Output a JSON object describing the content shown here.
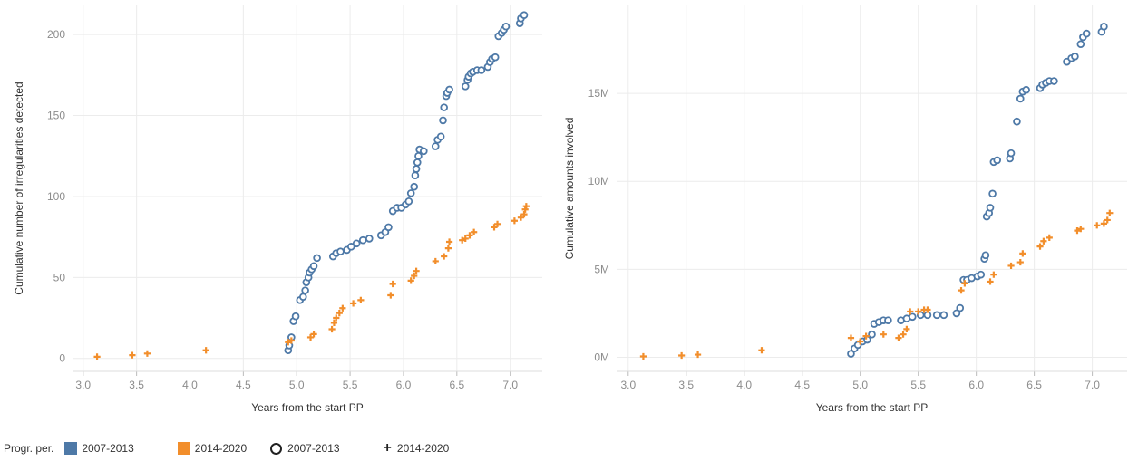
{
  "colors": {
    "series_2007": "#4e79a7",
    "series_2014": "#f28e2b",
    "grid": "#ececec"
  },
  "legend": {
    "title": "Progr. per.",
    "items": [
      {
        "label": "2007-2013",
        "kind": "color",
        "color": "#4e79a7"
      },
      {
        "label": "2014-2020",
        "kind": "color",
        "color": "#f28e2b"
      },
      {
        "label": "2007-2013",
        "kind": "shape",
        "shape": "circle"
      },
      {
        "label": "2014-2020",
        "kind": "shape",
        "shape": "plus"
      }
    ]
  },
  "chart_data": [
    {
      "type": "scatter",
      "xlabel": "Years from the start PP",
      "ylabel": "Cumulative number of irregularities detected",
      "xlim": [
        2.9,
        7.3
      ],
      "ylim": [
        -8,
        218
      ],
      "xticks": [
        3.0,
        3.5,
        4.0,
        4.5,
        5.0,
        5.5,
        6.0,
        6.5,
        7.0
      ],
      "xtick_labels": [
        "3.0",
        "3.5",
        "4.0",
        "4.5",
        "5.0",
        "5.5",
        "6.0",
        "6.5",
        "7.0"
      ],
      "yticks": [
        0,
        50,
        100,
        150,
        200
      ],
      "ytick_labels": [
        "0",
        "50",
        "100",
        "150",
        "200"
      ],
      "grid": true,
      "series": [
        {
          "name": "2007-2013",
          "marker": "circle",
          "color": "#4e79a7",
          "points": [
            [
              4.92,
              5
            ],
            [
              4.93,
              8
            ],
            [
              4.95,
              13
            ],
            [
              4.97,
              23
            ],
            [
              4.99,
              26
            ],
            [
              5.03,
              36
            ],
            [
              5.06,
              38
            ],
            [
              5.08,
              42
            ],
            [
              5.09,
              47
            ],
            [
              5.11,
              50
            ],
            [
              5.12,
              53
            ],
            [
              5.14,
              55
            ],
            [
              5.16,
              57
            ],
            [
              5.19,
              62
            ],
            [
              5.34,
              63
            ],
            [
              5.37,
              65
            ],
            [
              5.41,
              66
            ],
            [
              5.47,
              67
            ],
            [
              5.51,
              69
            ],
            [
              5.56,
              71
            ],
            [
              5.62,
              73
            ],
            [
              5.68,
              74
            ],
            [
              5.79,
              76
            ],
            [
              5.83,
              78
            ],
            [
              5.86,
              81
            ],
            [
              5.9,
              91
            ],
            [
              5.94,
              93
            ],
            [
              5.98,
              93
            ],
            [
              6.02,
              95
            ],
            [
              6.05,
              97
            ],
            [
              6.07,
              102
            ],
            [
              6.1,
              106
            ],
            [
              6.11,
              113
            ],
            [
              6.12,
              117
            ],
            [
              6.13,
              121
            ],
            [
              6.14,
              125
            ],
            [
              6.15,
              129
            ],
            [
              6.19,
              128
            ],
            [
              6.3,
              131
            ],
            [
              6.32,
              135
            ],
            [
              6.35,
              137
            ],
            [
              6.37,
              147
            ],
            [
              6.38,
              155
            ],
            [
              6.4,
              162
            ],
            [
              6.41,
              164
            ],
            [
              6.43,
              166
            ],
            [
              6.58,
              168
            ],
            [
              6.6,
              172
            ],
            [
              6.61,
              174
            ],
            [
              6.63,
              176
            ],
            [
              6.65,
              177
            ],
            [
              6.69,
              178
            ],
            [
              6.73,
              178
            ],
            [
              6.79,
              180
            ],
            [
              6.81,
              183
            ],
            [
              6.83,
              185
            ],
            [
              6.86,
              186
            ],
            [
              6.89,
              199
            ],
            [
              6.92,
              201
            ],
            [
              6.94,
              203
            ],
            [
              6.96,
              205
            ],
            [
              7.09,
              207
            ],
            [
              7.1,
              210
            ],
            [
              7.13,
              212
            ]
          ]
        },
        {
          "name": "2014-2020",
          "marker": "plus",
          "color": "#f28e2b",
          "points": [
            [
              3.13,
              1
            ],
            [
              3.46,
              2
            ],
            [
              3.6,
              3
            ],
            [
              4.15,
              5
            ],
            [
              4.92,
              10
            ],
            [
              4.95,
              11
            ],
            [
              5.13,
              13
            ],
            [
              5.16,
              15
            ],
            [
              5.33,
              18
            ],
            [
              5.35,
              22
            ],
            [
              5.37,
              25
            ],
            [
              5.4,
              28
            ],
            [
              5.43,
              31
            ],
            [
              5.53,
              34
            ],
            [
              5.6,
              36
            ],
            [
              5.88,
              39
            ],
            [
              5.9,
              46
            ],
            [
              6.07,
              48
            ],
            [
              6.1,
              51
            ],
            [
              6.12,
              54
            ],
            [
              6.3,
              60
            ],
            [
              6.38,
              63
            ],
            [
              6.42,
              68
            ],
            [
              6.43,
              72
            ],
            [
              6.55,
              73
            ],
            [
              6.58,
              74
            ],
            [
              6.62,
              76
            ],
            [
              6.66,
              78
            ],
            [
              6.85,
              81
            ],
            [
              6.88,
              83
            ],
            [
              7.04,
              85
            ],
            [
              7.1,
              87
            ],
            [
              7.13,
              89
            ],
            [
              7.14,
              92
            ],
            [
              7.15,
              94
            ]
          ]
        }
      ]
    },
    {
      "type": "scatter",
      "xlabel": "Years from the start PP",
      "ylabel": "Cumulative amounts involved",
      "xlim": [
        2.9,
        7.3
      ],
      "ylim": [
        -800000,
        20000000
      ],
      "xticks": [
        3.0,
        3.5,
        4.0,
        4.5,
        5.0,
        5.5,
        6.0,
        6.5,
        7.0
      ],
      "xtick_labels": [
        "3.0",
        "3.5",
        "4.0",
        "4.5",
        "5.0",
        "5.5",
        "6.0",
        "6.5",
        "7.0"
      ],
      "yticks": [
        0,
        5000000,
        10000000,
        15000000
      ],
      "ytick_labels": [
        "0M",
        "5M",
        "10M",
        "15M"
      ],
      "grid": true,
      "series": [
        {
          "name": "2007-2013",
          "marker": "circle",
          "color": "#4e79a7",
          "points": [
            [
              4.92,
              200000
            ],
            [
              4.95,
              500000
            ],
            [
              4.98,
              700000
            ],
            [
              5.02,
              900000
            ],
            [
              5.06,
              1000000
            ],
            [
              5.1,
              1300000
            ],
            [
              5.12,
              1900000
            ],
            [
              5.16,
              2000000
            ],
            [
              5.2,
              2100000
            ],
            [
              5.24,
              2100000
            ],
            [
              5.35,
              2100000
            ],
            [
              5.4,
              2200000
            ],
            [
              5.45,
              2300000
            ],
            [
              5.52,
              2400000
            ],
            [
              5.58,
              2400000
            ],
            [
              5.66,
              2400000
            ],
            [
              5.72,
              2400000
            ],
            [
              5.83,
              2500000
            ],
            [
              5.86,
              2800000
            ],
            [
              5.89,
              4400000
            ],
            [
              5.92,
              4400000
            ],
            [
              5.96,
              4500000
            ],
            [
              6.01,
              4600000
            ],
            [
              6.04,
              4700000
            ],
            [
              6.07,
              5600000
            ],
            [
              6.08,
              5800000
            ],
            [
              6.09,
              8000000
            ],
            [
              6.11,
              8200000
            ],
            [
              6.12,
              8500000
            ],
            [
              6.14,
              9300000
            ],
            [
              6.15,
              11100000
            ],
            [
              6.18,
              11200000
            ],
            [
              6.29,
              11300000
            ],
            [
              6.3,
              11600000
            ],
            [
              6.35,
              13400000
            ],
            [
              6.38,
              14700000
            ],
            [
              6.4,
              15100000
            ],
            [
              6.43,
              15200000
            ],
            [
              6.55,
              15300000
            ],
            [
              6.57,
              15500000
            ],
            [
              6.6,
              15600000
            ],
            [
              6.63,
              15700000
            ],
            [
              6.67,
              15700000
            ],
            [
              6.78,
              16800000
            ],
            [
              6.82,
              17000000
            ],
            [
              6.85,
              17100000
            ],
            [
              6.9,
              17800000
            ],
            [
              6.92,
              18200000
            ],
            [
              6.95,
              18400000
            ],
            [
              7.08,
              18500000
            ],
            [
              7.1,
              18800000
            ]
          ]
        },
        {
          "name": "2014-2020",
          "marker": "plus",
          "color": "#f28e2b",
          "points": [
            [
              3.13,
              50000
            ],
            [
              3.46,
              100000
            ],
            [
              3.6,
              150000
            ],
            [
              4.15,
              400000
            ],
            [
              4.92,
              1100000
            ],
            [
              5.0,
              900000
            ],
            [
              5.05,
              1200000
            ],
            [
              5.2,
              1300000
            ],
            [
              5.33,
              1100000
            ],
            [
              5.37,
              1300000
            ],
            [
              5.4,
              1600000
            ],
            [
              5.43,
              2600000
            ],
            [
              5.5,
              2600000
            ],
            [
              5.55,
              2700000
            ],
            [
              5.58,
              2700000
            ],
            [
              5.87,
              3800000
            ],
            [
              5.9,
              4200000
            ],
            [
              6.12,
              4300000
            ],
            [
              6.15,
              4700000
            ],
            [
              6.3,
              5200000
            ],
            [
              6.38,
              5400000
            ],
            [
              6.4,
              5900000
            ],
            [
              6.55,
              6300000
            ],
            [
              6.58,
              6600000
            ],
            [
              6.63,
              6800000
            ],
            [
              6.87,
              7200000
            ],
            [
              6.9,
              7300000
            ],
            [
              7.04,
              7500000
            ],
            [
              7.1,
              7600000
            ],
            [
              7.13,
              7800000
            ],
            [
              7.15,
              8200000
            ]
          ]
        }
      ]
    }
  ]
}
